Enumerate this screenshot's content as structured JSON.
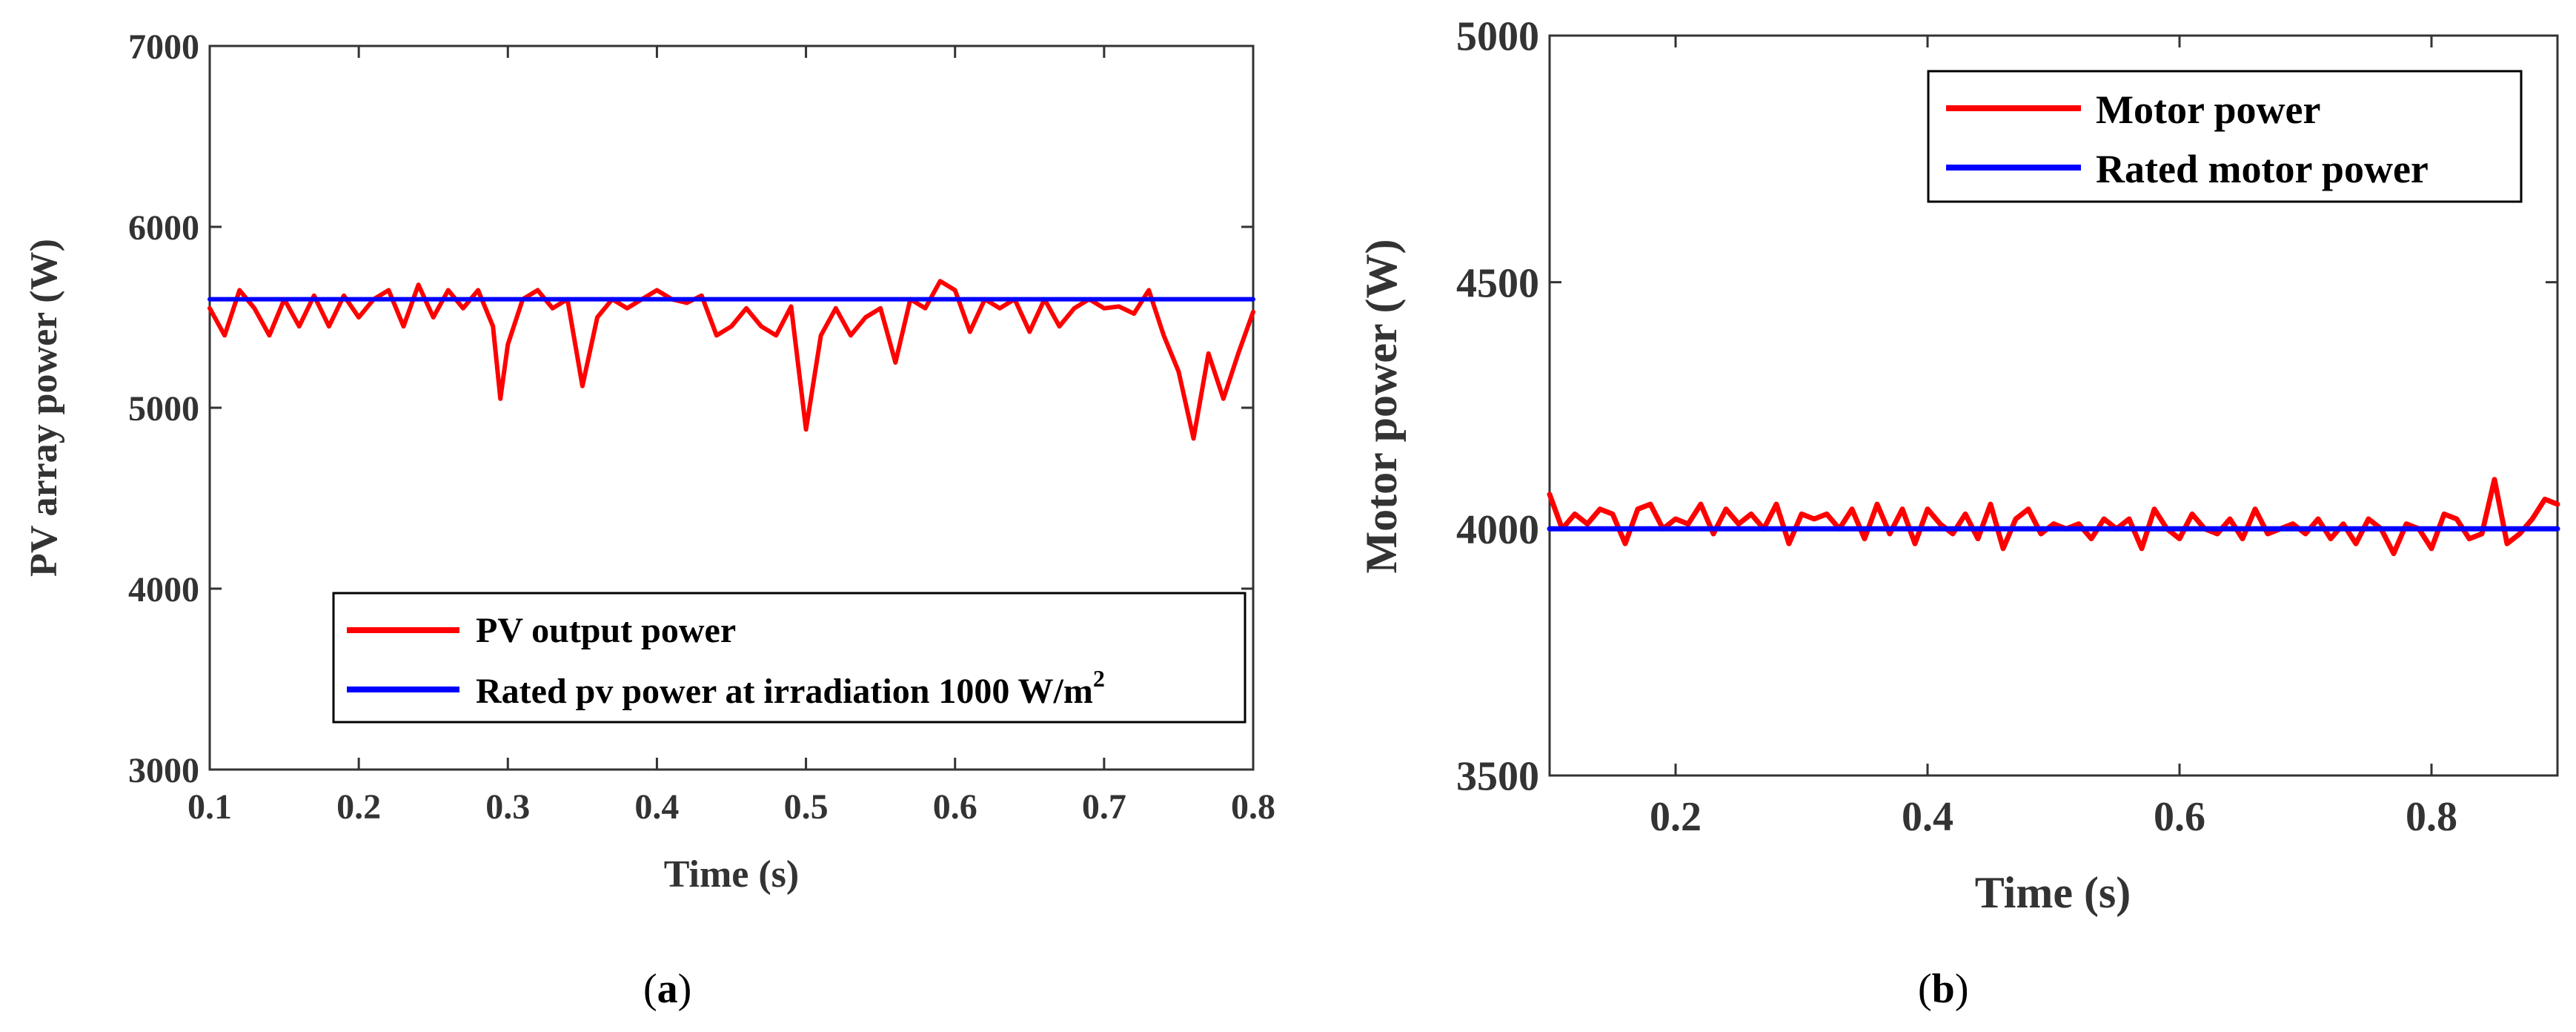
{
  "colors": {
    "motor": "#ff0000",
    "rated": "#0000ff",
    "axis": "#333333",
    "legend_border": "#000000"
  },
  "chart_data": [
    {
      "type": "line",
      "panel": "a",
      "caption": "(a)",
      "caption_letter": "a",
      "xlabel": "Time (s)",
      "ylabel": "PV array power (W)",
      "xlim": [
        0.1,
        0.8
      ],
      "ylim": [
        3000,
        7000
      ],
      "xticks": [
        0.1,
        0.2,
        0.3,
        0.4,
        0.5,
        0.6,
        0.7,
        0.8
      ],
      "xtick_labels": [
        "0.1",
        "0.2",
        "0.3",
        "0.4",
        "0.5",
        "0.6",
        "0.7",
        "0.8"
      ],
      "yticks": [
        3000,
        4000,
        5000,
        6000,
        7000
      ],
      "ytick_labels": [
        "3000",
        "4000",
        "5000",
        "6000",
        "7000"
      ],
      "grid": false,
      "legend_position": "lower-right",
      "series": [
        {
          "name": "PV output power",
          "legend_label": "PV output power",
          "color": "#ff0000",
          "x": [
            0.1,
            0.11,
            0.12,
            0.13,
            0.14,
            0.15,
            0.16,
            0.17,
            0.18,
            0.19,
            0.2,
            0.21,
            0.22,
            0.23,
            0.24,
            0.25,
            0.26,
            0.27,
            0.28,
            0.29,
            0.295,
            0.3,
            0.31,
            0.32,
            0.33,
            0.34,
            0.35,
            0.36,
            0.37,
            0.38,
            0.39,
            0.4,
            0.41,
            0.42,
            0.43,
            0.44,
            0.45,
            0.46,
            0.47,
            0.48,
            0.49,
            0.5,
            0.51,
            0.52,
            0.53,
            0.54,
            0.55,
            0.56,
            0.57,
            0.58,
            0.59,
            0.6,
            0.61,
            0.62,
            0.63,
            0.64,
            0.65,
            0.66,
            0.67,
            0.68,
            0.69,
            0.7,
            0.71,
            0.72,
            0.73,
            0.74,
            0.75,
            0.76,
            0.77,
            0.78,
            0.79,
            0.8
          ],
          "y": [
            5550,
            5400,
            5650,
            5550,
            5400,
            5600,
            5450,
            5620,
            5450,
            5620,
            5500,
            5600,
            5650,
            5450,
            5680,
            5500,
            5650,
            5550,
            5650,
            5450,
            5050,
            5350,
            5600,
            5650,
            5550,
            5600,
            5120,
            5500,
            5600,
            5550,
            5600,
            5650,
            5600,
            5580,
            5620,
            5400,
            5450,
            5550,
            5450,
            5400,
            5560,
            4880,
            5400,
            5550,
            5400,
            5500,
            5550,
            5250,
            5600,
            5550,
            5700,
            5650,
            5420,
            5600,
            5550,
            5600,
            5420,
            5600,
            5450,
            5550,
            5600,
            5550,
            5560,
            5520,
            5650,
            5400,
            5200,
            4830,
            5300,
            5050,
            5300,
            5530
          ]
        },
        {
          "name": "Rated pv power at irradiation 1000 W/m2",
          "legend_label": "Rated pv power at irradiation 1000 W/m",
          "legend_sup": "2",
          "color": "#0000ff",
          "x": [
            0.1,
            0.8
          ],
          "y": [
            5600,
            5600
          ]
        }
      ]
    },
    {
      "type": "line",
      "panel": "b",
      "caption": "(b)",
      "caption_letter": "b",
      "xlabel": "Time (s)",
      "ylabel": "Motor power (W)",
      "xlim": [
        0.1,
        0.9
      ],
      "ylim": [
        3500,
        5000
      ],
      "xticks": [
        0.2,
        0.4,
        0.6,
        0.8
      ],
      "xtick_labels": [
        "0.2",
        "0.4",
        "0.6",
        "0.8"
      ],
      "yticks": [
        3500,
        4000,
        4500,
        5000
      ],
      "ytick_labels": [
        "3500",
        "4000",
        "4500",
        "5000"
      ],
      "grid": false,
      "legend_position": "top-right",
      "series": [
        {
          "name": "Motor power",
          "legend_label": "Motor power",
          "color": "#ff0000",
          "x": [
            0.1,
            0.11,
            0.12,
            0.13,
            0.14,
            0.15,
            0.16,
            0.17,
            0.18,
            0.19,
            0.2,
            0.21,
            0.22,
            0.23,
            0.24,
            0.25,
            0.26,
            0.27,
            0.28,
            0.29,
            0.3,
            0.31,
            0.32,
            0.33,
            0.34,
            0.35,
            0.36,
            0.37,
            0.38,
            0.39,
            0.4,
            0.41,
            0.42,
            0.43,
            0.44,
            0.45,
            0.46,
            0.47,
            0.48,
            0.49,
            0.5,
            0.51,
            0.52,
            0.53,
            0.54,
            0.55,
            0.56,
            0.57,
            0.58,
            0.59,
            0.6,
            0.61,
            0.62,
            0.63,
            0.64,
            0.65,
            0.66,
            0.67,
            0.68,
            0.69,
            0.7,
            0.71,
            0.72,
            0.73,
            0.74,
            0.75,
            0.76,
            0.77,
            0.78,
            0.79,
            0.8,
            0.81,
            0.82,
            0.83,
            0.84,
            0.85,
            0.86,
            0.87,
            0.88,
            0.89,
            0.9
          ],
          "y": [
            4070,
            4000,
            4030,
            4010,
            4040,
            4030,
            3970,
            4040,
            4050,
            4000,
            4020,
            4010,
            4050,
            3990,
            4040,
            4010,
            4030,
            4000,
            4050,
            3970,
            4030,
            4020,
            4030,
            4000,
            4040,
            3980,
            4050,
            3990,
            4040,
            3970,
            4040,
            4010,
            3990,
            4030,
            3980,
            4050,
            3960,
            4020,
            4040,
            3990,
            4010,
            4000,
            4010,
            3980,
            4020,
            4000,
            4020,
            3960,
            4040,
            4000,
            3980,
            4030,
            4000,
            3990,
            4020,
            3980,
            4040,
            3990,
            4000,
            4010,
            3990,
            4020,
            3980,
            4010,
            3970,
            4020,
            4000,
            3950,
            4010,
            4000,
            3960,
            4030,
            4020,
            3980,
            3990,
            4100,
            3970,
            3990,
            4020,
            4060,
            4050
          ]
        },
        {
          "name": "Rated motor power",
          "legend_label": "Rated motor power",
          "color": "#0000ff",
          "x": [
            0.1,
            0.9
          ],
          "y": [
            4000,
            4000
          ]
        }
      ]
    }
  ]
}
